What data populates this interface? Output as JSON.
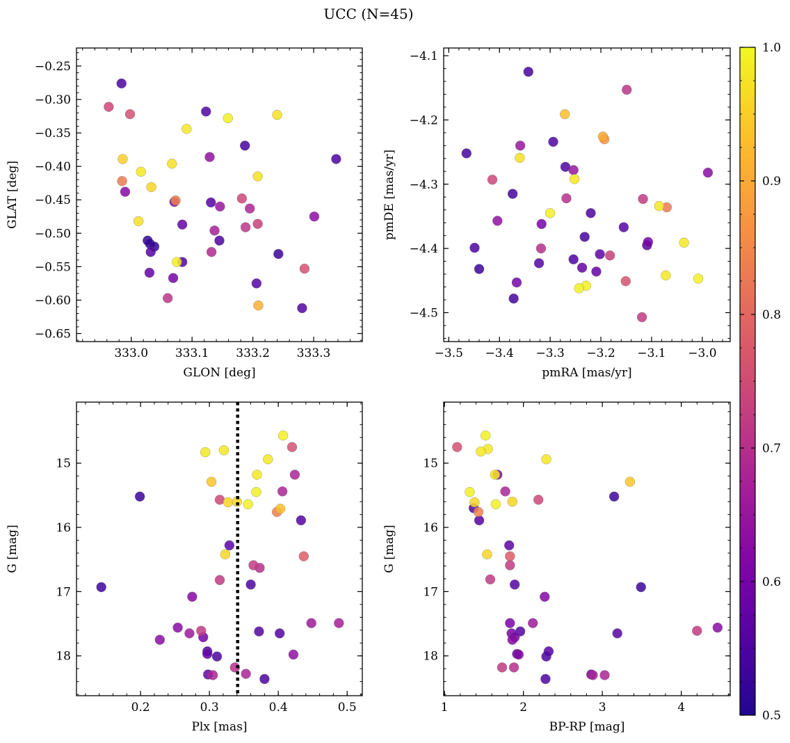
{
  "figure": {
    "title": "UCC (N=45)"
  },
  "colorbar": {
    "vmin": 0.5,
    "vmax": 1.0,
    "ticks": [
      0.5,
      0.6,
      0.7,
      0.8,
      0.9,
      1.0
    ],
    "tick_labels": [
      "0.5",
      "0.6",
      "0.7",
      "0.8",
      "0.9",
      "1.0"
    ],
    "colormap": "plasma"
  },
  "chart_data": [
    {
      "type": "scatter",
      "id": "glon-glat",
      "xlabel": "GLON [deg]",
      "ylabel": "GLAT [deg]",
      "xlim": [
        332.91,
        333.38
      ],
      "ylim": [
        -0.662,
        -0.223
      ],
      "xticks": [
        333.0,
        333.1,
        333.2,
        333.3
      ],
      "xtick_labels": [
        "333.0",
        "333.1",
        "333.2",
        "333.3"
      ],
      "yticks": [
        -0.25,
        -0.3,
        -0.35,
        -0.4,
        -0.45,
        -0.5,
        -0.55,
        -0.6,
        -0.65
      ],
      "ytick_labels": [
        "−0.25",
        "−0.30",
        "−0.35",
        "−0.40",
        "−0.45",
        "−0.50",
        "−0.55",
        "−0.60",
        "−0.65"
      ],
      "points": [
        {
          "x": 332.963,
          "y": -0.311,
          "c": 0.74
        },
        {
          "x": 332.998,
          "y": -0.322,
          "c": 0.76
        },
        {
          "x": 332.986,
          "y": -0.389,
          "c": 0.95
        },
        {
          "x": 332.984,
          "y": -0.276,
          "c": 0.55
        },
        {
          "x": 332.985,
          "y": -0.422,
          "c": 0.83
        },
        {
          "x": 332.99,
          "y": -0.438,
          "c": 0.62
        },
        {
          "x": 333.016,
          "y": -0.408,
          "c": 0.98
        },
        {
          "x": 333.033,
          "y": -0.431,
          "c": 0.96
        },
        {
          "x": 333.012,
          "y": -0.482,
          "c": 0.97
        },
        {
          "x": 333.027,
          "y": -0.511,
          "c": 0.52
        },
        {
          "x": 333.031,
          "y": -0.516,
          "c": 0.51
        },
        {
          "x": 333.038,
          "y": -0.52,
          "c": 0.52
        },
        {
          "x": 333.032,
          "y": -0.528,
          "c": 0.56
        },
        {
          "x": 333.073,
          "y": -0.451,
          "c": 0.84
        },
        {
          "x": 333.071,
          "y": -0.453,
          "c": 0.6
        },
        {
          "x": 333.067,
          "y": -0.396,
          "c": 0.97
        },
        {
          "x": 333.084,
          "y": -0.487,
          "c": 0.58
        },
        {
          "x": 333.075,
          "y": -0.543,
          "c": 0.99
        },
        {
          "x": 333.084,
          "y": -0.543,
          "c": 0.56
        },
        {
          "x": 333.069,
          "y": -0.567,
          "c": 0.6
        },
        {
          "x": 333.03,
          "y": -0.559,
          "c": 0.58
        },
        {
          "x": 333.06,
          "y": -0.597,
          "c": 0.71
        },
        {
          "x": 333.091,
          "y": -0.344,
          "c": 0.98
        },
        {
          "x": 333.123,
          "y": -0.318,
          "c": 0.55
        },
        {
          "x": 333.129,
          "y": -0.386,
          "c": 0.64
        },
        {
          "x": 333.131,
          "y": -0.454,
          "c": 0.56
        },
        {
          "x": 333.146,
          "y": -0.46,
          "c": 0.65
        },
        {
          "x": 333.137,
          "y": -0.496,
          "c": 0.67
        },
        {
          "x": 333.145,
          "y": -0.511,
          "c": 0.55
        },
        {
          "x": 333.132,
          "y": -0.528,
          "c": 0.69
        },
        {
          "x": 333.159,
          "y": -0.328,
          "c": 0.99
        },
        {
          "x": 333.187,
          "y": -0.369,
          "c": 0.54
        },
        {
          "x": 333.182,
          "y": -0.448,
          "c": 0.74
        },
        {
          "x": 333.195,
          "y": -0.463,
          "c": 0.68
        },
        {
          "x": 333.188,
          "y": -0.491,
          "c": 0.71
        },
        {
          "x": 333.208,
          "y": -0.486,
          "c": 0.73
        },
        {
          "x": 333.208,
          "y": -0.415,
          "c": 0.97
        },
        {
          "x": 333.206,
          "y": -0.575,
          "c": 0.56
        },
        {
          "x": 333.209,
          "y": -0.608,
          "c": 0.91
        },
        {
          "x": 333.24,
          "y": -0.323,
          "c": 0.97
        },
        {
          "x": 333.242,
          "y": -0.531,
          "c": 0.53
        },
        {
          "x": 333.285,
          "y": -0.553,
          "c": 0.76
        },
        {
          "x": 333.281,
          "y": -0.612,
          "c": 0.56
        },
        {
          "x": 333.301,
          "y": -0.475,
          "c": 0.63
        },
        {
          "x": 333.337,
          "y": -0.389,
          "c": 0.55
        }
      ]
    },
    {
      "type": "scatter",
      "id": "pmra-pmde",
      "xlabel": "pmRA [mas/yr]",
      "ylabel": "pmDE [mas/yr]",
      "xlim": [
        -3.51,
        -2.945
      ],
      "ylim": [
        -4.545,
        -4.088
      ],
      "xticks": [
        -3.5,
        -3.4,
        -3.3,
        -3.2,
        -3.1,
        -3.0
      ],
      "xtick_labels": [
        "−3.5",
        "−3.4",
        "−3.3",
        "−3.2",
        "−3.1",
        "−3.0"
      ],
      "yticks": [
        -4.1,
        -4.2,
        -4.3,
        -4.4,
        -4.5
      ],
      "ytick_labels": [
        "−4.1",
        "−4.2",
        "−4.3",
        "−4.4",
        "−4.5"
      ],
      "points": [
        {
          "x": -3.343,
          "y": -4.125,
          "c": 0.54
        },
        {
          "x": -3.149,
          "y": -4.153,
          "c": 0.71
        },
        {
          "x": -3.271,
          "y": -4.191,
          "c": 0.93
        },
        {
          "x": -3.196,
          "y": -4.226,
          "c": 0.9
        },
        {
          "x": -3.193,
          "y": -4.23,
          "c": 0.87
        },
        {
          "x": -3.294,
          "y": -4.234,
          "c": 0.55
        },
        {
          "x": -3.359,
          "y": -4.24,
          "c": 0.65
        },
        {
          "x": -3.465,
          "y": -4.252,
          "c": 0.54
        },
        {
          "x": -3.36,
          "y": -4.259,
          "c": 0.97
        },
        {
          "x": -3.27,
          "y": -4.273,
          "c": 0.55
        },
        {
          "x": -3.254,
          "y": -4.278,
          "c": 0.65
        },
        {
          "x": -2.989,
          "y": -4.282,
          "c": 0.63
        },
        {
          "x": -3.252,
          "y": -4.292,
          "c": 0.98
        },
        {
          "x": -3.414,
          "y": -4.293,
          "c": 0.74
        },
        {
          "x": -3.374,
          "y": -4.315,
          "c": 0.54
        },
        {
          "x": -3.268,
          "y": -4.322,
          "c": 0.7
        },
        {
          "x": -3.117,
          "y": -4.323,
          "c": 0.72
        },
        {
          "x": -3.085,
          "y": -4.334,
          "c": 0.98
        },
        {
          "x": -3.07,
          "y": -4.336,
          "c": 0.83
        },
        {
          "x": -3.3,
          "y": -4.345,
          "c": 0.99
        },
        {
          "x": -3.22,
          "y": -4.345,
          "c": 0.55
        },
        {
          "x": -3.404,
          "y": -4.357,
          "c": 0.64
        },
        {
          "x": -3.317,
          "y": -4.362,
          "c": 0.6
        },
        {
          "x": -3.155,
          "y": -4.367,
          "c": 0.56
        },
        {
          "x": -3.232,
          "y": -4.382,
          "c": 0.54
        },
        {
          "x": -3.107,
          "y": -4.39,
          "c": 0.6
        },
        {
          "x": -3.036,
          "y": -4.391,
          "c": 0.98
        },
        {
          "x": -3.109,
          "y": -4.395,
          "c": 0.56
        },
        {
          "x": -3.449,
          "y": -4.399,
          "c": 0.55
        },
        {
          "x": -3.318,
          "y": -4.4,
          "c": 0.7
        },
        {
          "x": -3.202,
          "y": -4.409,
          "c": 0.57
        },
        {
          "x": -3.182,
          "y": -4.411,
          "c": 0.73
        },
        {
          "x": -3.254,
          "y": -4.417,
          "c": 0.55
        },
        {
          "x": -3.322,
          "y": -4.423,
          "c": 0.56
        },
        {
          "x": -3.237,
          "y": -4.43,
          "c": 0.58
        },
        {
          "x": -3.44,
          "y": -4.432,
          "c": 0.53
        },
        {
          "x": -3.209,
          "y": -4.436,
          "c": 0.58
        },
        {
          "x": -3.072,
          "y": -4.442,
          "c": 0.98
        },
        {
          "x": -3.008,
          "y": -4.447,
          "c": 0.99
        },
        {
          "x": -3.151,
          "y": -4.451,
          "c": 0.76
        },
        {
          "x": -3.366,
          "y": -4.453,
          "c": 0.6
        },
        {
          "x": -3.229,
          "y": -4.458,
          "c": 0.99
        },
        {
          "x": -3.243,
          "y": -4.462,
          "c": 0.99
        },
        {
          "x": -3.372,
          "y": -4.478,
          "c": 0.54
        },
        {
          "x": -3.119,
          "y": -4.507,
          "c": 0.72
        }
      ]
    },
    {
      "type": "scatter",
      "id": "plx-g",
      "xlabel": "Plx [mas]",
      "ylabel": "G [mag]",
      "xlim": [
        0.107,
        0.522
      ],
      "ylim": [
        18.62,
        14.05
      ],
      "y_inverted": true,
      "xticks": [
        0.2,
        0.3,
        0.4,
        0.5
      ],
      "xtick_labels": [
        "0.2",
        "0.3",
        "0.4",
        "0.5"
      ],
      "yticks": [
        15,
        16,
        17,
        18
      ],
      "ytick_labels": [
        "15",
        "16",
        "17",
        "18"
      ],
      "vline": {
        "x": 0.341,
        "style": "dotted"
      },
      "points": [
        {
          "x": 0.407,
          "y": 14.57,
          "c": 0.99
        },
        {
          "x": 0.42,
          "y": 14.75,
          "c": 0.76
        },
        {
          "x": 0.321,
          "y": 14.8,
          "c": 0.98
        },
        {
          "x": 0.294,
          "y": 14.83,
          "c": 0.98
        },
        {
          "x": 0.385,
          "y": 14.94,
          "c": 0.98
        },
        {
          "x": 0.369,
          "y": 15.18,
          "c": 0.98
        },
        {
          "x": 0.424,
          "y": 15.18,
          "c": 0.68
        },
        {
          "x": 0.303,
          "y": 15.29,
          "c": 0.94
        },
        {
          "x": 0.406,
          "y": 15.44,
          "c": 0.68
        },
        {
          "x": 0.368,
          "y": 15.45,
          "c": 0.99
        },
        {
          "x": 0.199,
          "y": 15.52,
          "c": 0.53
        },
        {
          "x": 0.315,
          "y": 15.57,
          "c": 0.74
        },
        {
          "x": 0.327,
          "y": 15.61,
          "c": 0.96
        },
        {
          "x": 0.34,
          "y": 15.6,
          "c": 0.96
        },
        {
          "x": 0.356,
          "y": 15.64,
          "c": 0.99
        },
        {
          "x": 0.403,
          "y": 15.71,
          "c": 0.93
        },
        {
          "x": 0.398,
          "y": 15.76,
          "c": 0.84
        },
        {
          "x": 0.433,
          "y": 15.89,
          "c": 0.56
        },
        {
          "x": 0.329,
          "y": 16.28,
          "c": 0.57
        },
        {
          "x": 0.323,
          "y": 16.42,
          "c": 0.96
        },
        {
          "x": 0.437,
          "y": 16.45,
          "c": 0.78
        },
        {
          "x": 0.364,
          "y": 16.59,
          "c": 0.72
        },
        {
          "x": 0.373,
          "y": 16.63,
          "c": 0.7
        },
        {
          "x": 0.315,
          "y": 16.82,
          "c": 0.72
        },
        {
          "x": 0.36,
          "y": 16.89,
          "c": 0.55
        },
        {
          "x": 0.143,
          "y": 16.93,
          "c": 0.53
        },
        {
          "x": 0.275,
          "y": 17.08,
          "c": 0.62
        },
        {
          "x": 0.448,
          "y": 17.49,
          "c": 0.66
        },
        {
          "x": 0.488,
          "y": 17.49,
          "c": 0.67
        },
        {
          "x": 0.254,
          "y": 17.56,
          "c": 0.63
        },
        {
          "x": 0.288,
          "y": 17.61,
          "c": 0.72
        },
        {
          "x": 0.372,
          "y": 17.62,
          "c": 0.56
        },
        {
          "x": 0.271,
          "y": 17.65,
          "c": 0.66
        },
        {
          "x": 0.402,
          "y": 17.65,
          "c": 0.56
        },
        {
          "x": 0.291,
          "y": 17.71,
          "c": 0.6
        },
        {
          "x": 0.228,
          "y": 17.75,
          "c": 0.63
        },
        {
          "x": 0.297,
          "y": 17.93,
          "c": 0.56
        },
        {
          "x": 0.297,
          "y": 17.97,
          "c": 0.58
        },
        {
          "x": 0.422,
          "y": 17.98,
          "c": 0.64
        },
        {
          "x": 0.311,
          "y": 18.01,
          "c": 0.55
        },
        {
          "x": 0.337,
          "y": 18.18,
          "c": 0.7
        },
        {
          "x": 0.298,
          "y": 18.29,
          "c": 0.58
        },
        {
          "x": 0.305,
          "y": 18.3,
          "c": 0.68
        },
        {
          "x": 0.353,
          "y": 18.28,
          "c": 0.68
        },
        {
          "x": 0.38,
          "y": 18.36,
          "c": 0.55
        }
      ]
    },
    {
      "type": "scatter",
      "id": "bprp-g",
      "xlabel": "BP-RP [mag]",
      "ylabel": "G [mag]",
      "xlim": [
        0.99,
        4.62
      ],
      "ylim": [
        18.62,
        14.05
      ],
      "y_inverted": true,
      "xticks": [
        1,
        2,
        3,
        4
      ],
      "xtick_labels": [
        "1",
        "2",
        "3",
        "4"
      ],
      "yticks": [
        15,
        16,
        17,
        18
      ],
      "ytick_labels": [
        "15",
        "16",
        "17",
        "18"
      ],
      "points": [
        {
          "x": 1.52,
          "y": 14.57,
          "c": 0.99
        },
        {
          "x": 1.16,
          "y": 14.75,
          "c": 0.76
        },
        {
          "x": 1.55,
          "y": 14.78,
          "c": 0.98
        },
        {
          "x": 1.46,
          "y": 14.82,
          "c": 0.98
        },
        {
          "x": 2.29,
          "y": 14.94,
          "c": 0.98
        },
        {
          "x": 1.67,
          "y": 15.18,
          "c": 0.6
        },
        {
          "x": 1.64,
          "y": 15.18,
          "c": 0.98
        },
        {
          "x": 3.35,
          "y": 15.29,
          "c": 0.94
        },
        {
          "x": 1.77,
          "y": 15.44,
          "c": 0.68
        },
        {
          "x": 1.32,
          "y": 15.45,
          "c": 0.99
        },
        {
          "x": 3.15,
          "y": 15.52,
          "c": 0.53
        },
        {
          "x": 2.19,
          "y": 15.57,
          "c": 0.74
        },
        {
          "x": 1.86,
          "y": 15.6,
          "c": 0.96
        },
        {
          "x": 1.38,
          "y": 15.61,
          "c": 0.96
        },
        {
          "x": 1.65,
          "y": 15.64,
          "c": 0.99
        },
        {
          "x": 1.37,
          "y": 15.7,
          "c": 0.55
        },
        {
          "x": 1.43,
          "y": 15.76,
          "c": 0.84
        },
        {
          "x": 1.44,
          "y": 15.89,
          "c": 0.56
        },
        {
          "x": 1.82,
          "y": 16.28,
          "c": 0.57
        },
        {
          "x": 1.54,
          "y": 16.42,
          "c": 0.96
        },
        {
          "x": 1.83,
          "y": 16.45,
          "c": 0.78
        },
        {
          "x": 1.83,
          "y": 16.59,
          "c": 0.72
        },
        {
          "x": 1.58,
          "y": 16.81,
          "c": 0.72
        },
        {
          "x": 1.89,
          "y": 16.89,
          "c": 0.56
        },
        {
          "x": 3.49,
          "y": 16.93,
          "c": 0.53
        },
        {
          "x": 2.27,
          "y": 17.08,
          "c": 0.62
        },
        {
          "x": 1.83,
          "y": 17.49,
          "c": 0.61
        },
        {
          "x": 2.12,
          "y": 17.49,
          "c": 0.66
        },
        {
          "x": 4.46,
          "y": 17.56,
          "c": 0.63
        },
        {
          "x": 4.2,
          "y": 17.61,
          "c": 0.72
        },
        {
          "x": 1.96,
          "y": 17.62,
          "c": 0.56
        },
        {
          "x": 3.19,
          "y": 17.65,
          "c": 0.56
        },
        {
          "x": 1.85,
          "y": 17.65,
          "c": 0.6
        },
        {
          "x": 1.89,
          "y": 17.71,
          "c": 0.6
        },
        {
          "x": 1.86,
          "y": 17.75,
          "c": 0.63
        },
        {
          "x": 2.32,
          "y": 17.93,
          "c": 0.56
        },
        {
          "x": 1.92,
          "y": 17.97,
          "c": 0.58
        },
        {
          "x": 1.94,
          "y": 17.98,
          "c": 0.62
        },
        {
          "x": 2.29,
          "y": 18.01,
          "c": 0.55
        },
        {
          "x": 1.88,
          "y": 18.18,
          "c": 0.7
        },
        {
          "x": 2.86,
          "y": 18.29,
          "c": 0.58
        },
        {
          "x": 2.88,
          "y": 18.3,
          "c": 0.68
        },
        {
          "x": 3.03,
          "y": 18.3,
          "c": 0.68
        },
        {
          "x": 1.73,
          "y": 18.18,
          "c": 0.72
        },
        {
          "x": 2.28,
          "y": 18.36,
          "c": 0.55
        }
      ]
    }
  ]
}
